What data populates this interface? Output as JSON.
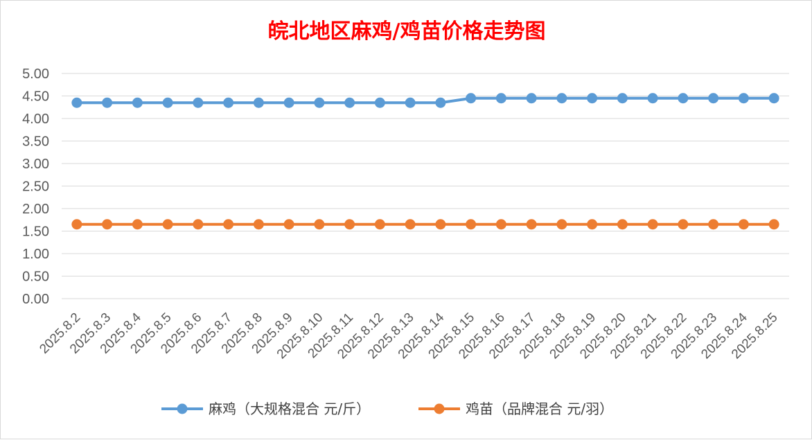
{
  "chart_data": {
    "type": "line",
    "title": "皖北地区麻鸡/鸡苗价格走势图",
    "xlabel": "",
    "ylabel": "",
    "ylim": [
      0,
      5
    ],
    "yticks": [
      "0.00",
      "0.50",
      "1.00",
      "1.50",
      "2.00",
      "2.50",
      "3.00",
      "3.50",
      "4.00",
      "4.50",
      "5.00"
    ],
    "grid": true,
    "legend_position": "bottom",
    "categories": [
      "2025.8.2",
      "2025.8.3",
      "2025.8.4",
      "2025.8.5",
      "2025.8.6",
      "2025.8.7",
      "2025.8.8",
      "2025.8.9",
      "2025.8.10",
      "2025.8.11",
      "2025.8.12",
      "2025.8.13",
      "2025.8.14",
      "2025.8.15",
      "2025.8.16",
      "2025.8.17",
      "2025.8.18",
      "2025.8.19",
      "2025.8.20",
      "2025.8.21",
      "2025.8.22",
      "2025.8.23",
      "2025.8.24",
      "2025.8.25"
    ],
    "series": [
      {
        "name": "麻鸡（大规格混合 元/斤）",
        "color": "#5b9bd5",
        "values": [
          4.35,
          4.35,
          4.35,
          4.35,
          4.35,
          4.35,
          4.35,
          4.35,
          4.35,
          4.35,
          4.35,
          4.35,
          4.35,
          4.45,
          4.45,
          4.45,
          4.45,
          4.45,
          4.45,
          4.45,
          4.45,
          4.45,
          4.45,
          4.45
        ]
      },
      {
        "name": "鸡苗（品牌混合 元/羽）",
        "color": "#ed7d31",
        "values": [
          1.65,
          1.65,
          1.65,
          1.65,
          1.65,
          1.65,
          1.65,
          1.65,
          1.65,
          1.65,
          1.65,
          1.65,
          1.65,
          1.65,
          1.65,
          1.65,
          1.65,
          1.65,
          1.65,
          1.65,
          1.65,
          1.65,
          1.65,
          1.65
        ]
      }
    ]
  }
}
